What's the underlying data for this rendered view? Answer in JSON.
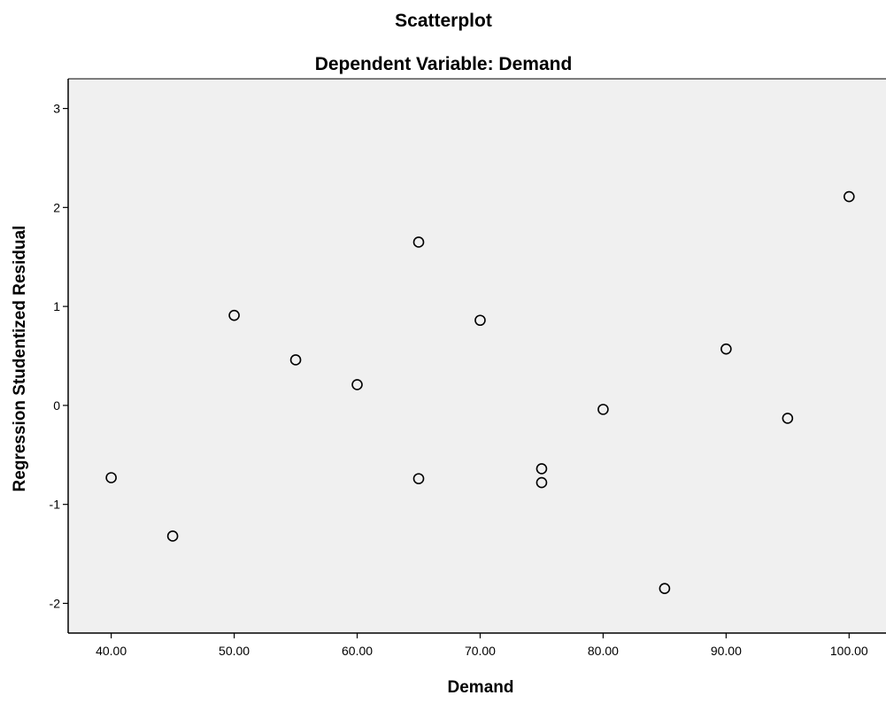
{
  "chart_data": {
    "type": "scatter",
    "title": "Scatterplot",
    "subtitle": "Dependent Variable: Demand",
    "xlabel": "Demand",
    "ylabel": "Regression Studentized Residual",
    "xlim": [
      36.5,
      103.0
    ],
    "ylim": [
      -2.3,
      3.3
    ],
    "xticks": [
      40,
      50,
      60,
      70,
      80,
      90,
      100
    ],
    "xtick_labels": [
      "40.00",
      "50.00",
      "60.00",
      "70.00",
      "80.00",
      "90.00",
      "100.00"
    ],
    "yticks": [
      -2,
      -1,
      0,
      1,
      2,
      3
    ],
    "ytick_labels": [
      "-2",
      "-1",
      "0",
      "1",
      "2",
      "3"
    ],
    "grid": false,
    "legend": "none",
    "colors": {
      "plot_background": "#f0f0f0",
      "marker_edge": "#000000",
      "axis": "#000000"
    },
    "points": [
      {
        "x": 40,
        "y": -0.73
      },
      {
        "x": 45,
        "y": -1.32
      },
      {
        "x": 50,
        "y": 0.91
      },
      {
        "x": 55,
        "y": 0.46
      },
      {
        "x": 60,
        "y": 0.21
      },
      {
        "x": 65,
        "y": 1.65
      },
      {
        "x": 65,
        "y": -0.74
      },
      {
        "x": 70,
        "y": 0.86
      },
      {
        "x": 75,
        "y": -0.64
      },
      {
        "x": 75,
        "y": -0.78
      },
      {
        "x": 80,
        "y": -0.04
      },
      {
        "x": 85,
        "y": -1.85
      },
      {
        "x": 90,
        "y": 0.57
      },
      {
        "x": 95,
        "y": -0.13
      },
      {
        "x": 100,
        "y": 2.11
      }
    ]
  }
}
